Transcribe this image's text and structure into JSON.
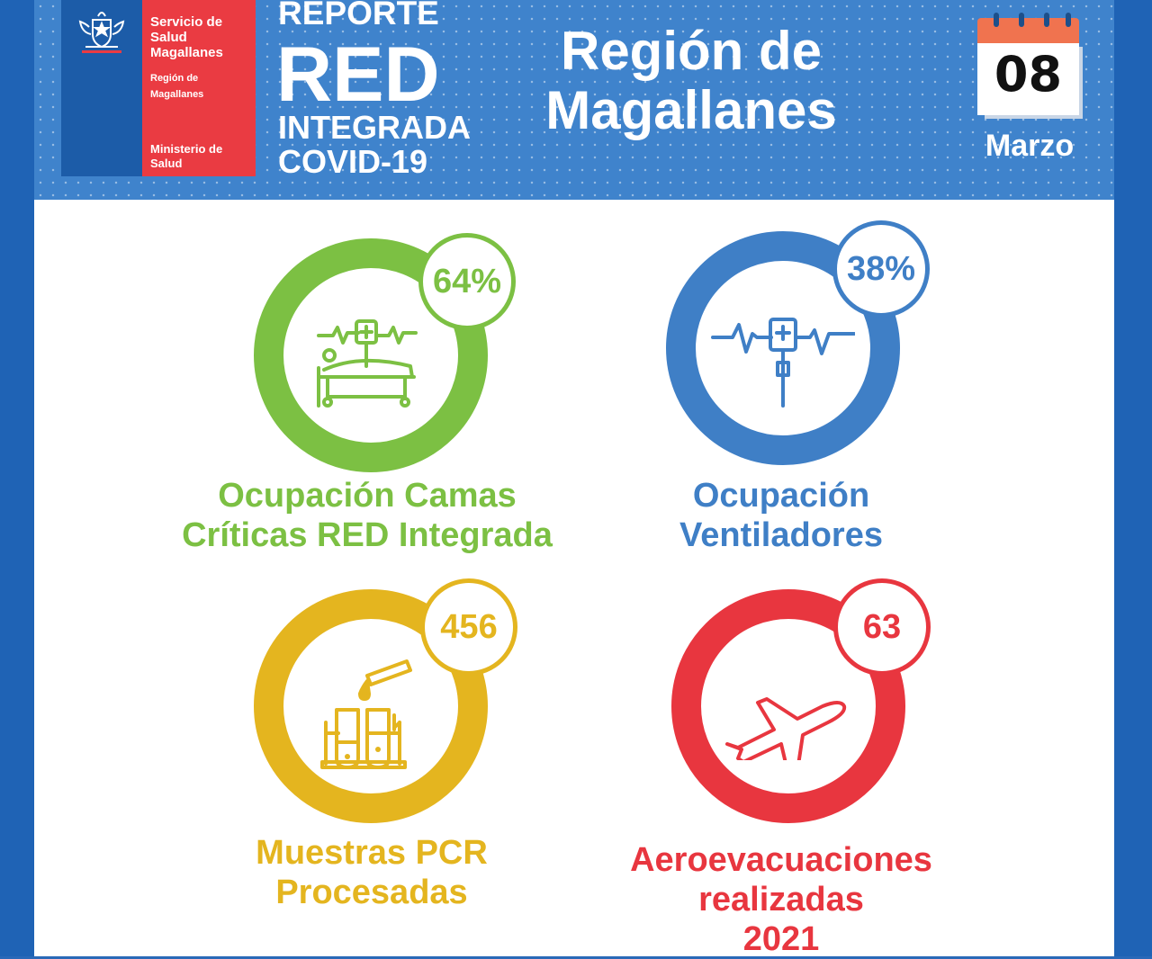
{
  "logo": {
    "service_name": "Servicio de Salud Magallanes",
    "region": "Región de Magallanes",
    "ministry": "Ministerio de Salud"
  },
  "header": {
    "report_line1": "REPORTE",
    "report_line2": "RED",
    "report_line3": "INTEGRADA",
    "report_line4": "COVID-19",
    "region_line1": "Región de",
    "region_line2": "Magallanes"
  },
  "calendar": {
    "day": "08",
    "month": "Marzo"
  },
  "stats": [
    {
      "value": "64%",
      "label_line1": "Ocupación Camas",
      "label_line2": "Críticas RED Integrada",
      "label_line3": "",
      "color": "#7cc043",
      "icon": "hospital-bed-icon"
    },
    {
      "value": "38%",
      "label_line1": "Ocupación",
      "label_line2": "Ventiladores",
      "label_line3": "",
      "color": "#3f7fc6",
      "icon": "ventilator-monitor-icon"
    },
    {
      "value": "456",
      "label_line1": "Muestras PCR",
      "label_line2": "Procesadas",
      "label_line3": "",
      "color": "#e4b51f",
      "icon": "test-tubes-icon"
    },
    {
      "value": "63",
      "label_line1": "Aeroevacuaciones",
      "label_line2": "realizadas",
      "label_line3": "2021",
      "color": "#e8363f",
      "icon": "airplane-icon"
    }
  ]
}
